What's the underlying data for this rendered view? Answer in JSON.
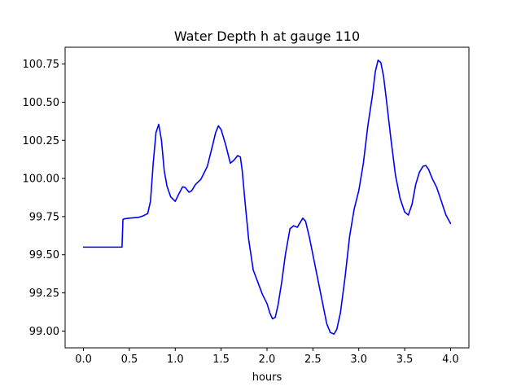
{
  "chart_data": {
    "type": "line",
    "title": "Water Depth h at gauge 110",
    "xlabel": "hours",
    "ylabel": "",
    "xlim": [
      -0.2,
      4.2
    ],
    "ylim": [
      98.89,
      100.86
    ],
    "grid": false,
    "xticks": [
      0.0,
      0.5,
      1.0,
      1.5,
      2.0,
      2.5,
      3.0,
      3.5,
      4.0
    ],
    "xtick_labels": [
      "0.0",
      "0.5",
      "1.0",
      "1.5",
      "2.0",
      "2.5",
      "3.0",
      "3.5",
      "4.0"
    ],
    "yticks": [
      99.0,
      99.25,
      99.5,
      99.75,
      100.0,
      100.25,
      100.5,
      100.75
    ],
    "ytick_labels": [
      "99.00",
      "99.25",
      "99.50",
      "99.75",
      "100.00",
      "100.25",
      "100.50",
      "100.75"
    ],
    "series": [
      {
        "color": "#0000ff",
        "x": [
          0.0,
          0.1,
          0.2,
          0.3,
          0.4,
          0.42,
          0.43,
          0.44,
          0.5,
          0.6,
          0.65,
          0.7,
          0.73,
          0.76,
          0.79,
          0.82,
          0.85,
          0.88,
          0.91,
          0.95,
          1.0,
          1.04,
          1.08,
          1.11,
          1.15,
          1.18,
          1.22,
          1.28,
          1.35,
          1.4,
          1.44,
          1.47,
          1.5,
          1.55,
          1.6,
          1.64,
          1.68,
          1.71,
          1.73,
          1.76,
          1.8,
          1.85,
          1.9,
          1.95,
          2.0,
          2.03,
          2.06,
          2.09,
          2.12,
          2.16,
          2.2,
          2.25,
          2.29,
          2.33,
          2.36,
          2.39,
          2.42,
          2.46,
          2.5,
          2.55,
          2.6,
          2.65,
          2.69,
          2.73,
          2.76,
          2.8,
          2.85,
          2.9,
          2.95,
          3.0,
          3.05,
          3.1,
          3.15,
          3.18,
          3.21,
          3.24,
          3.27,
          3.3,
          3.35,
          3.4,
          3.45,
          3.5,
          3.54,
          3.58,
          3.62,
          3.66,
          3.7,
          3.73,
          3.76,
          3.8,
          3.85,
          3.9,
          3.95,
          4.0
        ],
        "y": [
          99.55,
          99.55,
          99.55,
          99.55,
          99.55,
          99.55,
          99.73,
          99.735,
          99.74,
          99.745,
          99.755,
          99.77,
          99.85,
          100.1,
          100.3,
          100.355,
          100.25,
          100.05,
          99.95,
          99.88,
          99.85,
          99.9,
          99.945,
          99.94,
          99.91,
          99.92,
          99.96,
          99.995,
          100.08,
          100.2,
          100.3,
          100.345,
          100.32,
          100.22,
          100.1,
          100.12,
          100.15,
          100.14,
          100.05,
          99.85,
          99.6,
          99.4,
          99.32,
          99.24,
          99.18,
          99.12,
          99.08,
          99.09,
          99.17,
          99.32,
          99.5,
          99.67,
          99.69,
          99.68,
          99.71,
          99.74,
          99.72,
          99.62,
          99.5,
          99.35,
          99.2,
          99.05,
          98.99,
          98.98,
          99.01,
          99.12,
          99.35,
          99.62,
          99.8,
          99.92,
          100.1,
          100.35,
          100.55,
          100.7,
          100.775,
          100.76,
          100.67,
          100.52,
          100.26,
          100.02,
          99.87,
          99.78,
          99.76,
          99.83,
          99.96,
          100.04,
          100.08,
          100.085,
          100.06,
          100.0,
          99.94,
          99.85,
          99.76,
          99.705
        ]
      }
    ]
  }
}
